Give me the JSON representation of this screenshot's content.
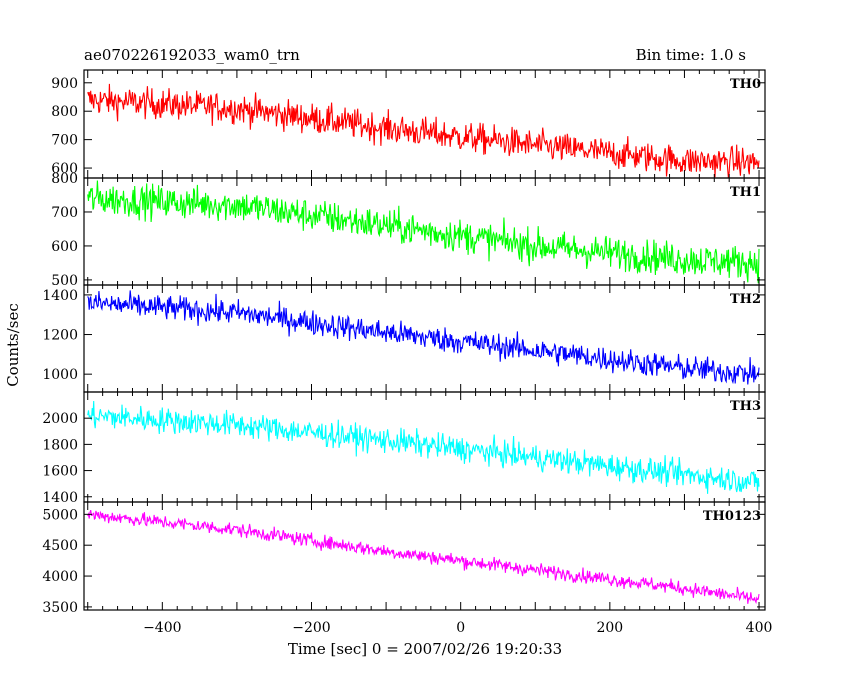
{
  "chart_data": {
    "type": "line",
    "title": "ae070226192033_wam0_trn",
    "subtitle": "Bin time: 1.0 s",
    "xlabel": "Time [sec] 0 = 2007/02/26 19:20:33",
    "ylabel": "Counts/sec",
    "xlim": [
      -505,
      408
    ],
    "x_ticks": [
      -400,
      -200,
      0,
      200,
      400
    ],
    "x_tick_labels": [
      "−400",
      "−200",
      "0",
      "200",
      "400"
    ],
    "x_range": [
      -500,
      400
    ],
    "grid": false,
    "panels": [
      {
        "name": "TH0",
        "color": "#ff0000",
        "ylim": [
          565,
          945
        ],
        "yticks": [
          600,
          700,
          800,
          900
        ],
        "ytick_labels": [
          "600",
          "700",
          "800",
          "900"
        ],
        "trend": [
          [
            -500,
            840
          ],
          [
            -300,
            810
          ],
          [
            -100,
            740
          ],
          [
            100,
            680
          ],
          [
            300,
            625
          ],
          [
            400,
            620
          ]
        ],
        "noise": 38
      },
      {
        "name": "TH1",
        "color": "#00ff00",
        "ylim": [
          485,
          800
        ],
        "yticks": [
          500,
          600,
          700,
          800
        ],
        "ytick_labels": [
          "500",
          "600",
          "700",
          "800"
        ],
        "trend": [
          [
            -500,
            740
          ],
          [
            -300,
            720
          ],
          [
            -100,
            660
          ],
          [
            100,
            600
          ],
          [
            300,
            560
          ],
          [
            400,
            550
          ]
        ],
        "noise": 35
      },
      {
        "name": "TH2",
        "color": "#0000ff",
        "ylim": [
          910,
          1450
        ],
        "yticks": [
          1000,
          1200,
          1400
        ],
        "ytick_labels": [
          "1000",
          "1200",
          "1400"
        ],
        "trend": [
          [
            -500,
            1360
          ],
          [
            -300,
            1310
          ],
          [
            -100,
            1210
          ],
          [
            100,
            1120
          ],
          [
            300,
            1030
          ],
          [
            400,
            1000
          ]
        ],
        "noise": 45
      },
      {
        "name": "TH3",
        "color": "#00ffff",
        "ylim": [
          1360,
          2200
        ],
        "yticks": [
          1400,
          1600,
          1800,
          2000
        ],
        "ytick_labels": [
          "1400",
          "1600",
          "1800",
          "2000"
        ],
        "trend": [
          [
            -500,
            2020
          ],
          [
            -300,
            1950
          ],
          [
            -100,
            1830
          ],
          [
            100,
            1700
          ],
          [
            300,
            1570
          ],
          [
            400,
            1510
          ]
        ],
        "noise": 70
      },
      {
        "name": "TH0123",
        "color": "#ff00ff",
        "ylim": [
          3450,
          5200
        ],
        "yticks": [
          3500,
          4000,
          4500,
          5000
        ],
        "ytick_labels": [
          "3500",
          "4000",
          "4500",
          "5000"
        ],
        "trend": [
          [
            -500,
            5000
          ],
          [
            -300,
            4750
          ],
          [
            -100,
            4400
          ],
          [
            100,
            4100
          ],
          [
            300,
            3800
          ],
          [
            400,
            3620
          ]
        ],
        "noise": 80
      }
    ]
  }
}
